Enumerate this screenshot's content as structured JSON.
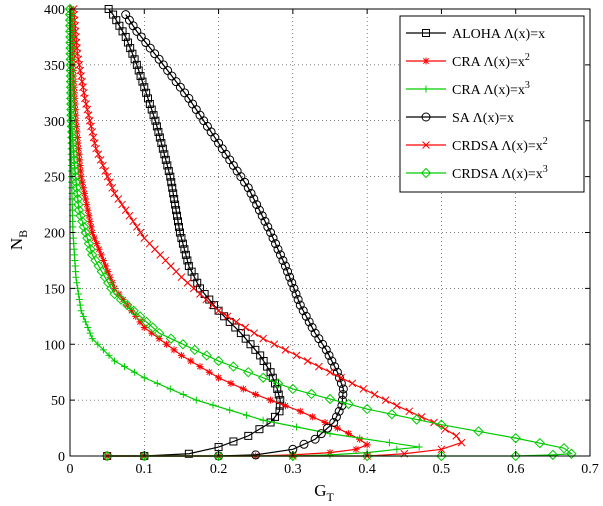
{
  "chart_data": {
    "type": "line",
    "xlabel": "G",
    "xlabel_sub": "T",
    "ylabel": "N",
    "ylabel_sub": "B",
    "xlim": [
      0,
      0.7
    ],
    "ylim": [
      0,
      400
    ],
    "xticks": [
      0,
      0.1,
      0.2,
      0.3,
      0.4,
      0.5,
      0.6,
      0.7
    ],
    "yticks": [
      0,
      50,
      100,
      150,
      200,
      250,
      300,
      350,
      400
    ],
    "xtick_labels": [
      "0",
      "0.1",
      "0.2",
      "0.3",
      "0.4",
      "0.5",
      "0.6",
      "0.7"
    ],
    "ytick_labels": [
      "0",
      "50",
      "100",
      "150",
      "200",
      "250",
      "300",
      "350",
      "400"
    ],
    "grid": true,
    "legend_position": "top-right",
    "series": [
      {
        "name": "ALOHA Λ(x)=x",
        "label_main": "ALOHA Λ(x)=x",
        "label_sup": "",
        "color": "#000000",
        "marker": "square",
        "points": [
          [
            0.05,
            0
          ],
          [
            0.1,
            0
          ],
          [
            0.16,
            2
          ],
          [
            0.2,
            8
          ],
          [
            0.24,
            18
          ],
          [
            0.27,
            30
          ],
          [
            0.282,
            40
          ],
          [
            0.283,
            50
          ],
          [
            0.279,
            60
          ],
          [
            0.27,
            75
          ],
          [
            0.256,
            90
          ],
          [
            0.23,
            110
          ],
          [
            0.2,
            130
          ],
          [
            0.175,
            150
          ],
          [
            0.16,
            170
          ],
          [
            0.148,
            200
          ],
          [
            0.135,
            250
          ],
          [
            0.115,
            300
          ],
          [
            0.09,
            350
          ],
          [
            0.075,
            375
          ],
          [
            0.058,
            395
          ],
          [
            0.052,
            400
          ]
        ]
      },
      {
        "name": "CRA Λ(x)=x²",
        "label_main": "CRA Λ(x)=x",
        "label_sup": "2",
        "color": "#ff0000",
        "marker": "star",
        "points": [
          [
            0.05,
            0
          ],
          [
            0.1,
            0
          ],
          [
            0.2,
            0
          ],
          [
            0.25,
            0
          ],
          [
            0.3,
            1
          ],
          [
            0.35,
            3
          ],
          [
            0.385,
            6
          ],
          [
            0.4,
            10
          ],
          [
            0.39,
            15
          ],
          [
            0.36,
            25
          ],
          [
            0.31,
            40
          ],
          [
            0.25,
            55
          ],
          [
            0.2,
            70
          ],
          [
            0.15,
            90
          ],
          [
            0.1,
            115
          ],
          [
            0.06,
            150
          ],
          [
            0.03,
            200
          ],
          [
            0.015,
            250
          ],
          [
            0.008,
            300
          ],
          [
            0.004,
            350
          ],
          [
            0.002,
            400
          ]
        ]
      },
      {
        "name": "CRA Λ(x)=x³",
        "label_main": "CRA Λ(x)=x",
        "label_sup": "3",
        "color": "#00cc00",
        "marker": "plus",
        "points": [
          [
            0.05,
            0
          ],
          [
            0.1,
            0
          ],
          [
            0.2,
            0
          ],
          [
            0.3,
            0
          ],
          [
            0.35,
            1
          ],
          [
            0.4,
            3
          ],
          [
            0.44,
            6
          ],
          [
            0.47,
            8
          ],
          [
            0.43,
            12
          ],
          [
            0.35,
            20
          ],
          [
            0.26,
            32
          ],
          [
            0.17,
            50
          ],
          [
            0.1,
            70
          ],
          [
            0.06,
            85
          ],
          [
            0.03,
            105
          ],
          [
            0.015,
            130
          ],
          [
            0.008,
            160
          ],
          [
            0.004,
            200
          ],
          [
            0.002,
            250
          ],
          [
            0.001,
            300
          ],
          [
            0.0005,
            350
          ],
          [
            0,
            400
          ]
        ]
      },
      {
        "name": "SA Λ(x)=x",
        "label_main": "SA Λ(x)=x",
        "label_sup": "",
        "color": "#000000",
        "marker": "circle",
        "points": [
          [
            0.05,
            0
          ],
          [
            0.1,
            0
          ],
          [
            0.2,
            0
          ],
          [
            0.25,
            1
          ],
          [
            0.3,
            6
          ],
          [
            0.33,
            15
          ],
          [
            0.355,
            30
          ],
          [
            0.366,
            45
          ],
          [
            0.368,
            60
          ],
          [
            0.36,
            75
          ],
          [
            0.345,
            95
          ],
          [
            0.33,
            110
          ],
          [
            0.31,
            135
          ],
          [
            0.29,
            170
          ],
          [
            0.27,
            200
          ],
          [
            0.24,
            240
          ],
          [
            0.2,
            280
          ],
          [
            0.16,
            320
          ],
          [
            0.12,
            355
          ],
          [
            0.09,
            380
          ],
          [
            0.075,
            395
          ]
        ]
      },
      {
        "name": "CRDSA Λ(x)=x²",
        "label_main": "CRDSA Λ(x)=x",
        "label_sup": "2",
        "color": "#ff0000",
        "marker": "x",
        "points": [
          [
            0.05,
            0
          ],
          [
            0.1,
            0
          ],
          [
            0.2,
            0
          ],
          [
            0.3,
            0
          ],
          [
            0.4,
            0
          ],
          [
            0.45,
            2
          ],
          [
            0.5,
            6
          ],
          [
            0.527,
            12
          ],
          [
            0.52,
            18
          ],
          [
            0.49,
            30
          ],
          [
            0.44,
            45
          ],
          [
            0.38,
            65
          ],
          [
            0.32,
            85
          ],
          [
            0.26,
            105
          ],
          [
            0.2,
            130
          ],
          [
            0.15,
            160
          ],
          [
            0.1,
            195
          ],
          [
            0.06,
            235
          ],
          [
            0.035,
            275
          ],
          [
            0.02,
            320
          ],
          [
            0.01,
            360
          ],
          [
            0.005,
            400
          ]
        ]
      },
      {
        "name": "CRDSA Λ(x)=x³",
        "label_main": "CRDSA Λ(x)=x",
        "label_sup": "3",
        "color": "#00cc00",
        "marker": "diamond",
        "points": [
          [
            0.05,
            0
          ],
          [
            0.1,
            0
          ],
          [
            0.2,
            0
          ],
          [
            0.3,
            0
          ],
          [
            0.4,
            0
          ],
          [
            0.5,
            0
          ],
          [
            0.6,
            0
          ],
          [
            0.65,
            1
          ],
          [
            0.675,
            2
          ],
          [
            0.665,
            7
          ],
          [
            0.6,
            16
          ],
          [
            0.5,
            28
          ],
          [
            0.4,
            42
          ],
          [
            0.3,
            60
          ],
          [
            0.2,
            85
          ],
          [
            0.12,
            110
          ],
          [
            0.06,
            145
          ],
          [
            0.03,
            180
          ],
          [
            0.012,
            220
          ],
          [
            0.006,
            260
          ],
          [
            0.002,
            300
          ],
          [
            0.001,
            350
          ],
          [
            0,
            400
          ]
        ]
      }
    ]
  }
}
